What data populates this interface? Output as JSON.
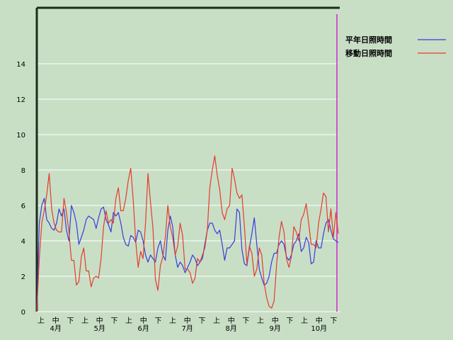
{
  "chart_data": {
    "type": "line",
    "title": "",
    "xlabel": "",
    "ylabel": "",
    "ylim": [
      0,
      16
    ],
    "yticks": [
      0,
      2,
      4,
      6,
      8,
      10,
      12,
      14
    ],
    "grid": true,
    "legend_position": "top-right",
    "x_period_labels": [
      "上",
      "中",
      "下",
      "上",
      "中",
      "下",
      "上",
      "中",
      "下",
      "上",
      "中",
      "下",
      "上",
      "中",
      "下",
      "上",
      "中",
      "下",
      "上",
      "中",
      "下"
    ],
    "x_month_labels": [
      "4月",
      "5月",
      "6月",
      "7月",
      "8月",
      "9月",
      "10月"
    ],
    "series": [
      {
        "name": "平年日照時間",
        "color": "#3b3bdd",
        "values": [
          0,
          5,
          6,
          6.4,
          5.2,
          5.0,
          4.7,
          4.6,
          5.0,
          5.8,
          5.4,
          5.8,
          4.6,
          4.0,
          6.0,
          5.6,
          5.0,
          3.8,
          4.2,
          4.6,
          5.2,
          5.4,
          5.3,
          5.2,
          4.7,
          5.3,
          5.8,
          5.9,
          5.2,
          4.9,
          4.5,
          5.6,
          5.4,
          5.6,
          5.0,
          4.2,
          3.8,
          3.7,
          4.3,
          4.2,
          3.9,
          4.6,
          4.5,
          4.0,
          3.2,
          2.8,
          3.2,
          3.0,
          2.8,
          3.6,
          4.0,
          3.2,
          2.9,
          4.6,
          5.4,
          4.8,
          3.2,
          2.5,
          2.8,
          2.6,
          2.2,
          2.5,
          2.8,
          3.2,
          3.0,
          2.6,
          2.8,
          3.0,
          3.8,
          4.6,
          5.0,
          5.0,
          4.6,
          4.4,
          4.6,
          3.8,
          2.9,
          3.6,
          3.6,
          3.8,
          4.0,
          5.8,
          5.6,
          3.5,
          2.7,
          2.6,
          3.6,
          4.4,
          5.3,
          3.8,
          2.4,
          1.9,
          1.5,
          1.6,
          2.0,
          2.8,
          3.3,
          3.3,
          3.8,
          4.0,
          3.8,
          3.1,
          2.9,
          3.2,
          3.8,
          4.0,
          4.4,
          3.4,
          3.6,
          4.2,
          3.9,
          2.7,
          2.8,
          4.0,
          3.6,
          3.6,
          4.4,
          5.0,
          5.2,
          4.6,
          4.1,
          4.0,
          3.9
        ]
      },
      {
        "name": "移動日照時間",
        "color": "#e63b2e",
        "values": [
          0,
          3,
          5.0,
          5.7,
          6.6,
          7.8,
          5.8,
          5.0,
          4.6,
          4.5,
          4.5,
          6.4,
          5.6,
          4.5,
          2.9,
          2.9,
          1.5,
          1.7,
          3.1,
          3.6,
          2.3,
          2.3,
          1.4,
          1.9,
          2.0,
          1.9,
          3.0,
          4.8,
          5.7,
          5.0,
          5.2,
          5.0,
          6.4,
          7.0,
          5.7,
          5.7,
          6.4,
          7.4,
          8.1,
          6.3,
          4.0,
          2.5,
          3.4,
          3.0,
          5.0,
          7.8,
          6.2,
          4.7,
          1.8,
          1.2,
          2.6,
          3.1,
          4.2,
          6.0,
          4.8,
          4.2,
          3.2,
          3.7,
          5.0,
          4.3,
          2.4,
          2.4,
          2.2,
          1.6,
          1.9,
          3.0,
          2.8,
          3.2,
          3.6,
          4.6,
          7.0,
          8.0,
          8.8,
          7.7,
          6.9,
          5.6,
          5.2,
          5.8,
          6.0,
          8.1,
          7.5,
          6.7,
          6.4,
          6.6,
          4.8,
          2.7,
          3.7,
          3.3,
          2.0,
          2.4,
          3.6,
          3.2,
          1.6,
          0.8,
          0.3,
          0.2,
          0.6,
          2.6,
          4.2,
          5.1,
          4.5,
          3.0,
          2.5,
          3.1,
          4.8,
          4.5,
          4.0,
          5.2,
          5.5,
          6.1,
          5.0,
          3.8,
          3.8,
          3.6,
          5.0,
          5.8,
          6.7,
          6.5,
          4.5,
          5.8,
          4.2,
          5.6,
          4.4
        ]
      }
    ]
  }
}
